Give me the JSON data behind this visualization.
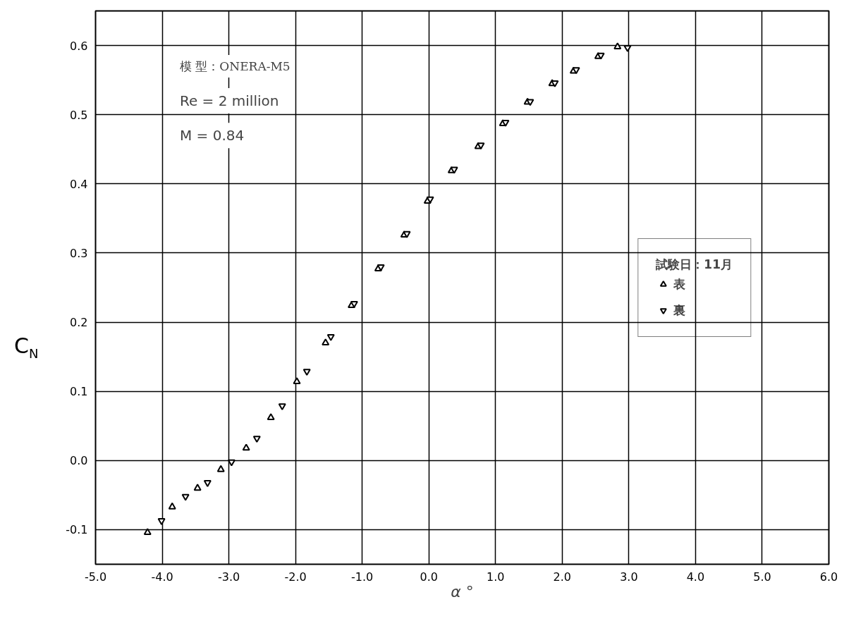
{
  "chart_data": {
    "type": "scatter",
    "xlabel": "α °",
    "ylabel": "C$_{N}$",
    "legend_title": "試験日：11月",
    "annotations": [
      "模 型：ONERA-M5",
      "Re = 2 million",
      "M = 0.84"
    ],
    "xlim": [
      -5,
      6
    ],
    "ylim": [
      -0.15,
      0.65
    ],
    "xticks": [
      {
        "value": -5,
        "label": "-5.0"
      },
      {
        "value": -4,
        "label": "-4.0"
      },
      {
        "value": -3,
        "label": "-3.0"
      },
      {
        "value": -2,
        "label": "-2.0"
      },
      {
        "value": -1,
        "label": "-1.0"
      },
      {
        "value": 0,
        "label": "0.0"
      },
      {
        "value": 1,
        "label": "1.0"
      },
      {
        "value": 2,
        "label": "2.0"
      },
      {
        "value": 3,
        "label": "3.0"
      },
      {
        "value": 4,
        "label": "4.0"
      },
      {
        "value": 5,
        "label": "5.0"
      },
      {
        "value": 6,
        "label": "6.0"
      }
    ],
    "yticks": [
      -0.1,
      {
        "value": 0,
        "label": "0.0"
      },
      0.1,
      0.2,
      0.3,
      0.4,
      0.5,
      0.6
    ],
    "grid": true,
    "legend": "right",
    "marker": "triangle",
    "series": [
      {
        "name": "表",
        "color": "#000000",
        "x": [
          -4.22,
          -3.85,
          -3.47,
          -3.12,
          -2.74,
          -2.37,
          -1.98,
          -1.55,
          -1.16,
          -0.76,
          -0.37,
          -0.02,
          0.34,
          0.74,
          1.11,
          1.48,
          1.85,
          2.17,
          2.54,
          2.83
        ],
        "values": [
          -0.104,
          -0.067,
          -0.04,
          -0.013,
          0.018,
          0.062,
          0.114,
          0.17,
          0.224,
          0.277,
          0.326,
          0.375,
          0.419,
          0.454,
          0.487,
          0.518,
          0.545,
          0.563,
          0.584,
          0.598
        ]
      },
      {
        "name": "裏",
        "color": "#000000",
        "x": [
          -4.01,
          -3.65,
          -3.32,
          -2.96,
          -2.58,
          -2.2,
          -1.83,
          -1.47,
          -1.12,
          -0.72,
          -0.33,
          0.02,
          0.38,
          0.78,
          1.15,
          1.52,
          1.89,
          2.21,
          2.58,
          2.98
        ],
        "values": [
          -0.087,
          -0.052,
          -0.032,
          -0.002,
          0.032,
          0.079,
          0.129,
          0.179,
          0.227,
          0.28,
          0.328,
          0.378,
          0.421,
          0.456,
          0.489,
          0.519,
          0.546,
          0.565,
          0.586,
          0.597
        ]
      }
    ]
  }
}
